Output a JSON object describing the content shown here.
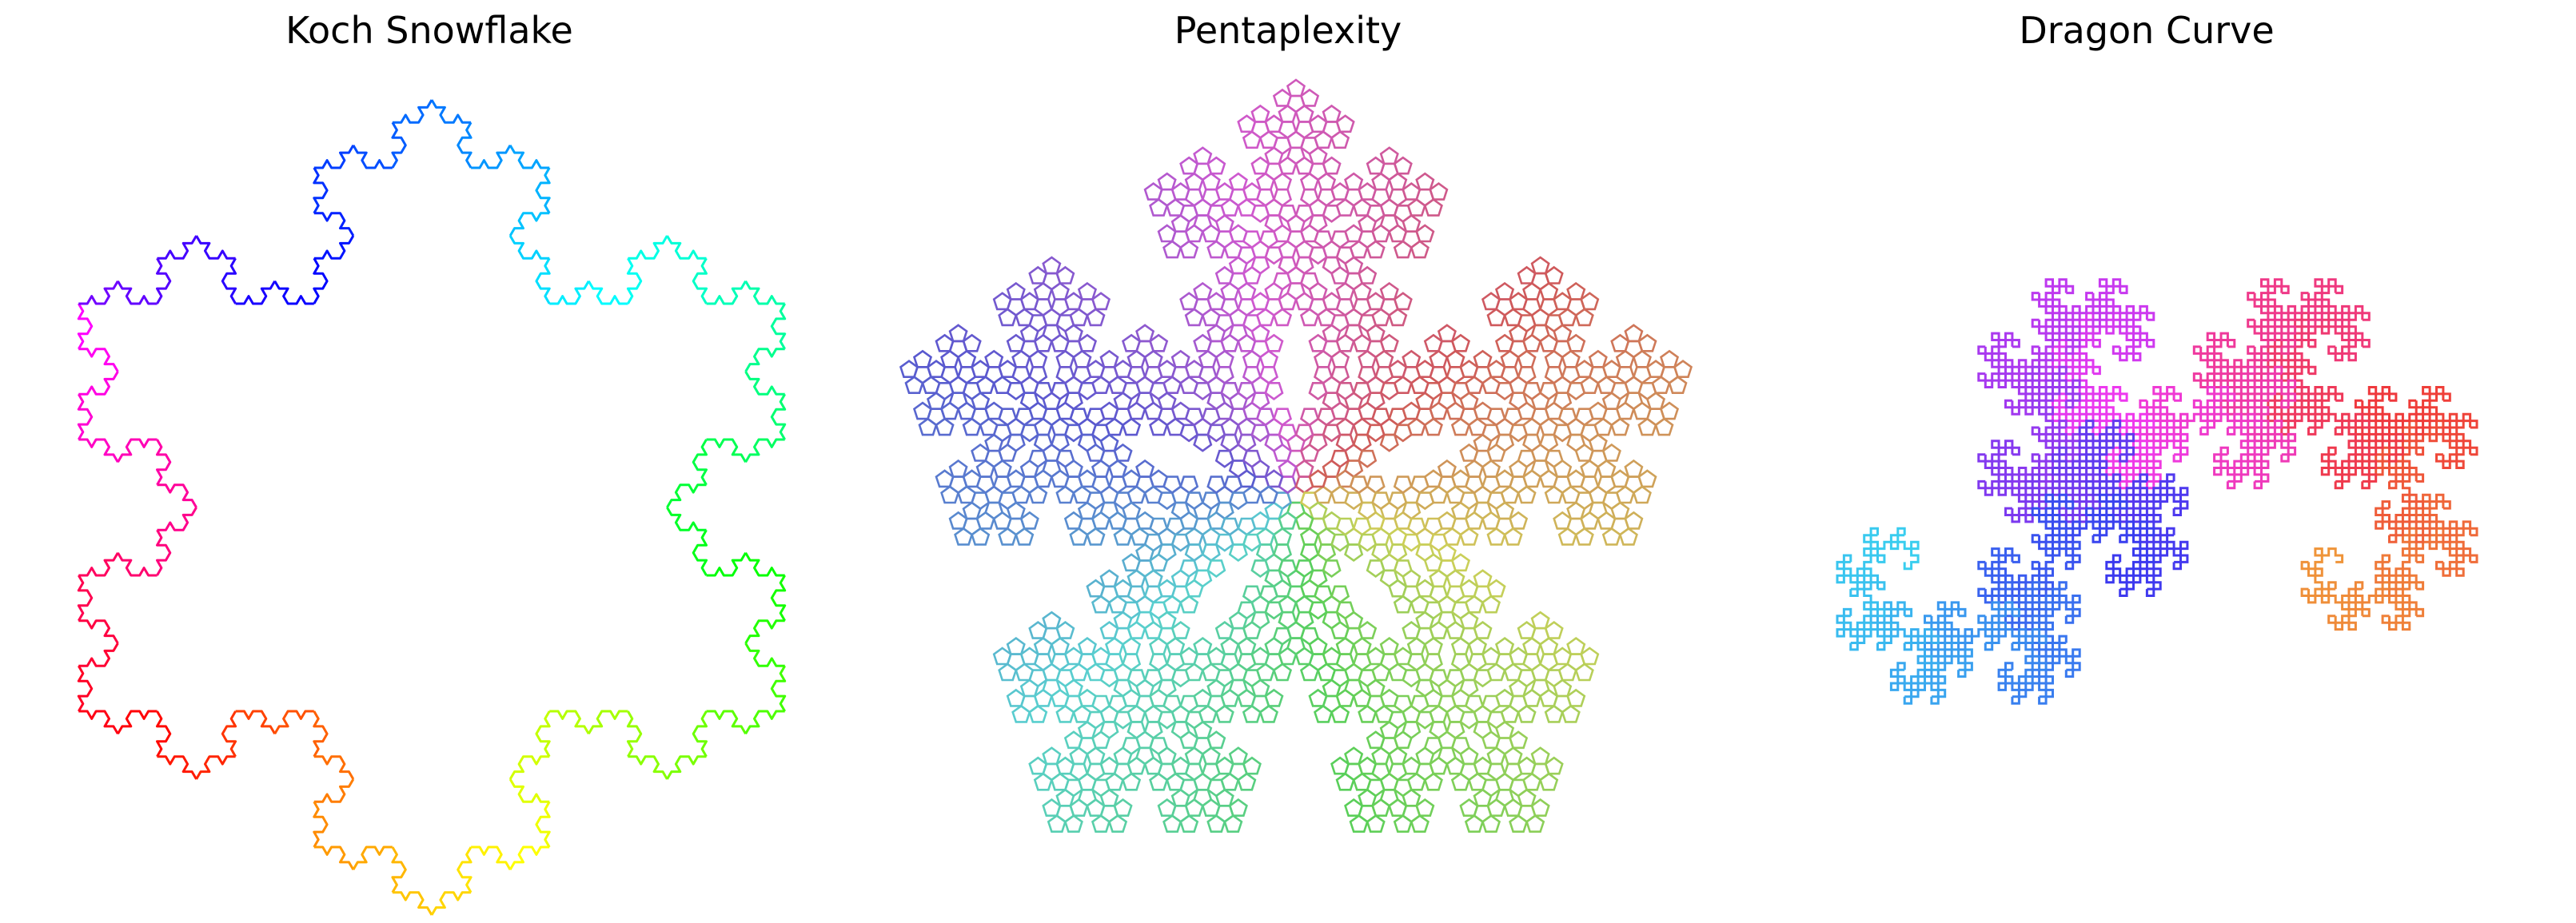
{
  "figure": {
    "background": "#ffffff",
    "panels": [
      {
        "id": "koch",
        "title": "Koch Snowflake",
        "fractal": "koch-snowflake",
        "iterations": 4,
        "stroke_coloring": "rainbow hue along the curve",
        "colors": [
          "#ff0000",
          "#ff7f00",
          "#ffff00",
          "#7fff00",
          "#00ff00",
          "#00ffff",
          "#007fff",
          "#0000ff",
          "#8000ff",
          "#ff00ff"
        ]
      },
      {
        "id": "penta",
        "title": "Pentaplexity",
        "fractal": "pentaplexity",
        "iterations": 4,
        "shape": "pentagon outlines",
        "colors": [
          "#d6307a",
          "#a070b8",
          "#6fa6c8",
          "#5fc0b8",
          "#78b8a0",
          "#c8a850",
          "#e8a040",
          "#e07070",
          "#aab070"
        ]
      },
      {
        "id": "dragon",
        "title": "Dragon Curve",
        "fractal": "dragon-curve",
        "iterations": 12,
        "stroke_coloring": "gradient along the curve",
        "colors": [
          "#ff8800",
          "#e06070",
          "#a04ee8",
          "#7a5cf0",
          "#4aa0ea",
          "#00ccff"
        ]
      }
    ]
  }
}
